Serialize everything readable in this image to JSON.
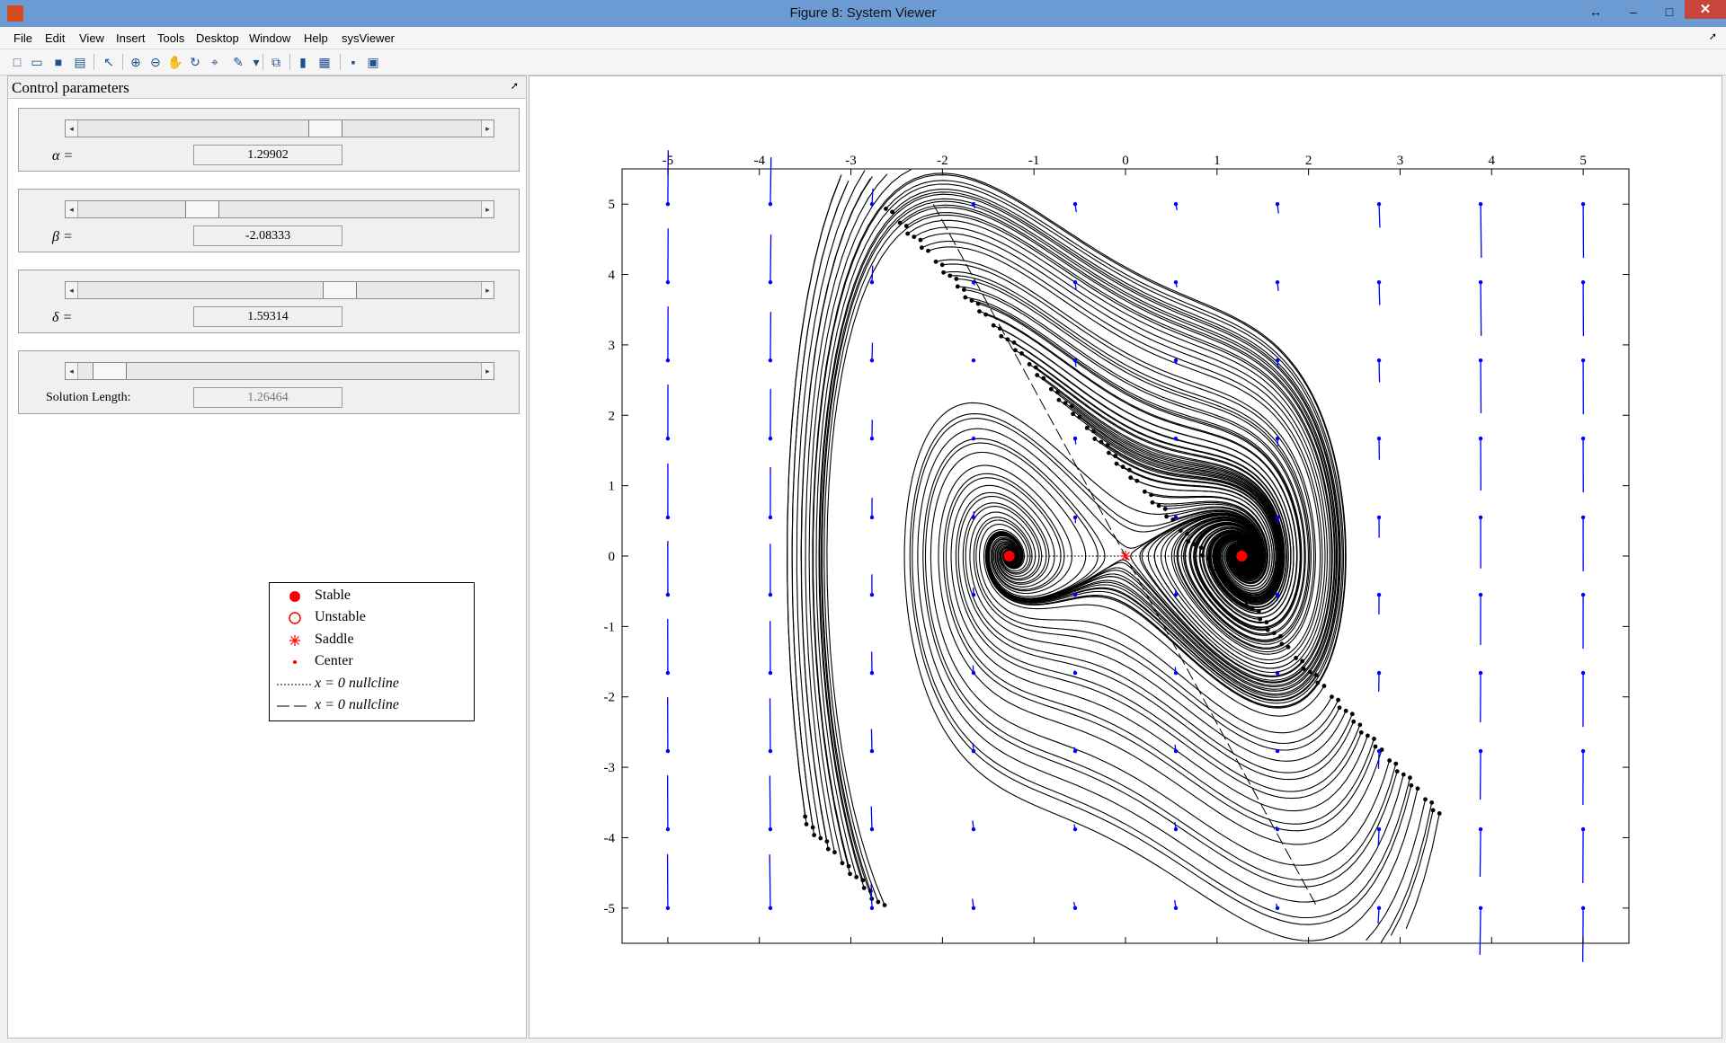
{
  "window": {
    "title": "Figure 8: System Viewer"
  },
  "menu": [
    {
      "label": "File"
    },
    {
      "label": "Edit"
    },
    {
      "label": "View"
    },
    {
      "label": "Insert"
    },
    {
      "label": "Tools"
    },
    {
      "label": "Desktop"
    },
    {
      "label": "Window"
    },
    {
      "label": "Help"
    },
    {
      "label": "sysViewer"
    }
  ],
  "toolbar": [
    "new-icon",
    "open-icon",
    "save-icon",
    "print-icon",
    "pointer-icon",
    "zoom-in-icon",
    "zoom-out-icon",
    "pan-icon",
    "rotate-icon",
    "data-cursor-icon",
    "brush-icon",
    "link-icon",
    "colorbar-icon",
    "legend-icon",
    "hide-plot-tools-icon",
    "show-plot-tools-icon"
  ],
  "panel": {
    "title": "Control parameters",
    "params": [
      {
        "label": "α =",
        "value": "1.29902",
        "slider_fraction": 0.62
      },
      {
        "label": "β =",
        "value": "-2.08333",
        "slider_fraction": 0.29
      },
      {
        "label": "δ =",
        "value": "1.59314",
        "slider_fraction": 0.66
      },
      {
        "label": "Solution Length:",
        "value": "1.26464",
        "slider_fraction": 0.04
      }
    ]
  },
  "legend": [
    {
      "label": "Stable",
      "marker": "filled-circle"
    },
    {
      "label": "Unstable",
      "marker": "open-circle"
    },
    {
      "label": "Saddle",
      "marker": "asterisk"
    },
    {
      "label": "Center",
      "marker": "dot"
    },
    {
      "label": "x = 0 nullcline",
      "marker": "dotted-line"
    },
    {
      "label": "x = 0 nullcline",
      "marker": "dashed-line"
    }
  ],
  "colors": {
    "trajectory": "#000000",
    "field": "#0000ff",
    "equilibrium": "#ff0000"
  },
  "chart_data": {
    "type": "scatter",
    "title": "",
    "xlabel": "",
    "ylabel": "",
    "xlim": [
      -5.5,
      5.5
    ],
    "ylim": [
      -5.5,
      5.5
    ],
    "x_ticks": [
      "-5",
      "-4",
      "-3",
      "-2",
      "-1",
      "0",
      "1",
      "2",
      "3",
      "4",
      "5"
    ],
    "y_ticks": [
      "5",
      "4",
      "3",
      "2",
      "1",
      "0",
      "-1",
      "-2",
      "-3",
      "-4",
      "-5"
    ],
    "grid": false,
    "x_axis_position": "top",
    "series": [
      {
        "name": "Stable",
        "points": [
          [
            -1.27,
            0
          ],
          [
            1.27,
            0
          ]
        ]
      },
      {
        "name": "Saddle",
        "points": [
          [
            0,
            0
          ]
        ]
      }
    ]
  }
}
